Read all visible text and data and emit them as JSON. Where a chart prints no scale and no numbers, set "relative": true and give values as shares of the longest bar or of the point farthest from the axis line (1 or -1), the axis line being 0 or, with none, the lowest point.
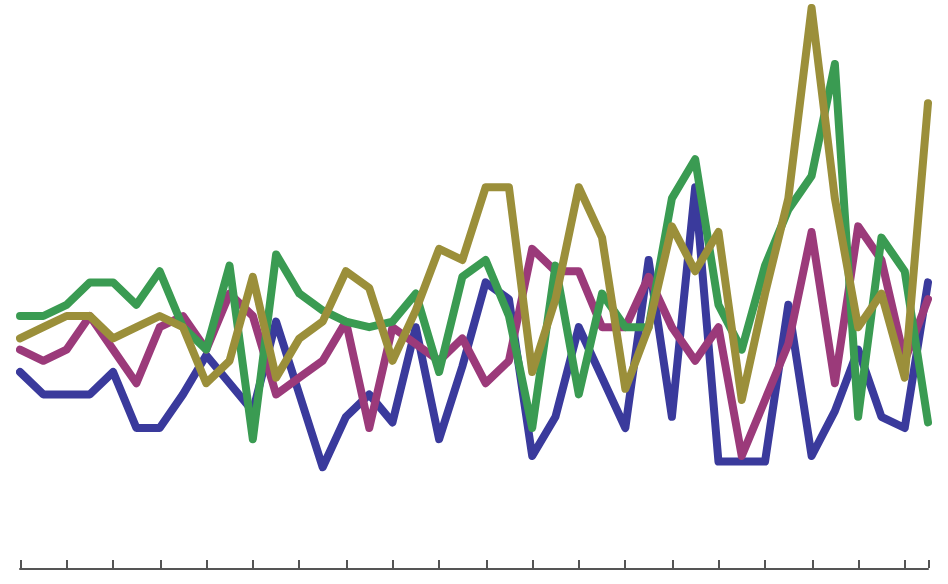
{
  "chart_data": {
    "type": "line",
    "relative": true,
    "categories": [
      null,
      null,
      null,
      null,
      null,
      null,
      null,
      null,
      null,
      null,
      null,
      null,
      null,
      null,
      null,
      null,
      null,
      null,
      null,
      null,
      null,
      null,
      null,
      null,
      null,
      null,
      null,
      null,
      null,
      null,
      null,
      null,
      null,
      null,
      null,
      null,
      null,
      null,
      null,
      null
    ],
    "series": [
      {
        "color": "#3a3a9c",
        "values": [
          0.35,
          0.31,
          0.31,
          0.31,
          0.35,
          0.25,
          0.25,
          0.31,
          0.38,
          0.33,
          0.28,
          0.44,
          0.31,
          0.18,
          0.27,
          0.31,
          0.26,
          0.43,
          0.23,
          0.36,
          0.51,
          0.48,
          0.2,
          0.27,
          0.43,
          0.34,
          0.25,
          0.55,
          0.27,
          0.68,
          0.19,
          0.19,
          0.19,
          0.47,
          0.2,
          0.28,
          0.39,
          0.27,
          0.25,
          0.51
        ]
      },
      {
        "color": "#9b3a7a",
        "values": [
          0.39,
          0.37,
          0.39,
          0.45,
          0.39,
          0.33,
          0.43,
          0.45,
          0.39,
          0.49,
          0.45,
          0.31,
          0.34,
          0.37,
          0.44,
          0.25,
          0.43,
          0.4,
          0.37,
          0.41,
          0.33,
          0.37,
          0.57,
          0.53,
          0.53,
          0.43,
          0.43,
          0.52,
          0.43,
          0.37,
          0.43,
          0.2,
          0.3,
          0.4,
          0.6,
          0.33,
          0.61,
          0.55,
          0.37,
          0.48
        ]
      },
      {
        "color": "#3a9b52",
        "values": [
          0.45,
          0.45,
          0.47,
          0.51,
          0.51,
          0.47,
          0.53,
          0.43,
          0.39,
          0.54,
          0.23,
          0.56,
          0.49,
          0.46,
          0.44,
          0.43,
          0.44,
          0.49,
          0.35,
          0.52,
          0.55,
          0.45,
          0.25,
          0.54,
          0.31,
          0.49,
          0.43,
          0.43,
          0.66,
          0.73,
          0.47,
          0.39,
          0.54,
          0.64,
          0.7,
          0.9,
          0.27,
          0.59,
          0.53,
          0.26
        ]
      },
      {
        "color": "#9b8f3a",
        "values": [
          0.41,
          0.43,
          0.45,
          0.45,
          0.41,
          0.43,
          0.45,
          0.43,
          0.33,
          0.37,
          0.52,
          0.34,
          0.41,
          0.44,
          0.53,
          0.5,
          0.37,
          0.46,
          0.57,
          0.55,
          0.68,
          0.68,
          0.35,
          0.48,
          0.68,
          0.59,
          0.32,
          0.43,
          0.61,
          0.53,
          0.6,
          0.3,
          0.49,
          0.66,
          1,
          0.66,
          0.43,
          0.49,
          0.34,
          0.83
        ]
      }
    ],
    "marker": "none",
    "line_style": "solid"
  }
}
